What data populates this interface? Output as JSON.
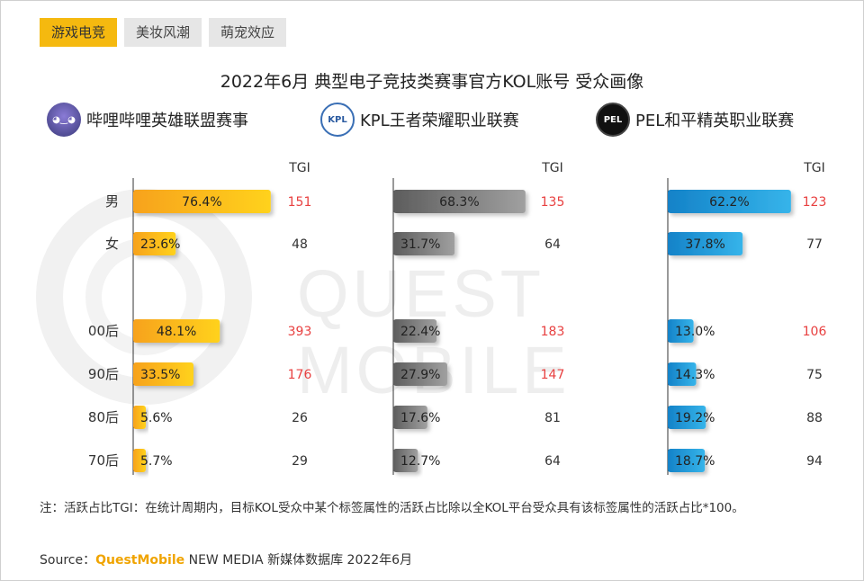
{
  "tabs": [
    {
      "label": "游戏电竞",
      "active": true
    },
    {
      "label": "美妆风潮",
      "active": false
    },
    {
      "label": "萌宠效应",
      "active": false
    }
  ],
  "watermark": "QUEST MOBILE",
  "title": "2022年6月 典型电子竞技类赛事官方KOL账号 受众画像",
  "note": "注：活跃占比TGI：在统计周期内，目标KOL受众中某个标签属性的活跃占比除以全KOL平台受众具有该标签属性的活跃占比*100。",
  "source": {
    "label": "Source：",
    "brand": "QuestMobile",
    "rest": "NEW MEDIA 新媒体数据库 2022年6月"
  },
  "colors": {
    "accent": "#f5b90f",
    "gray": "#7a7a7a",
    "blue": "#1f9ad6",
    "tgi_high": "#e84040",
    "tgi_normal": "#333333"
  },
  "chart_data": [
    {
      "type": "bar",
      "league": "哔哩哔哩英雄联盟赛事",
      "logo_icon": "bilibili-lol-icon",
      "categories": [
        "男",
        "女",
        "00后",
        "90后",
        "80后",
        "70后"
      ],
      "values": [
        76.4,
        23.6,
        48.1,
        33.5,
        5.6,
        5.7
      ],
      "labels": [
        "76.4%",
        "23.6%",
        "48.1%",
        "33.5%",
        "5.6%",
        "5.7%"
      ],
      "tgi_header": "TGI",
      "tgi": [
        151,
        48,
        393,
        176,
        26,
        29
      ],
      "color": "#f5b90f"
    },
    {
      "type": "bar",
      "league": "KPL王者荣耀职业联赛",
      "logo_icon": "kpl-icon",
      "categories": [
        "男",
        "女",
        "00后",
        "90后",
        "80后",
        "70后"
      ],
      "values": [
        68.3,
        31.7,
        22.4,
        27.9,
        17.6,
        12.7
      ],
      "labels": [
        "68.3%",
        "31.7%",
        "22.4%",
        "27.9%",
        "17.6%",
        "12.7%"
      ],
      "tgi_header": "TGI",
      "tgi": [
        135,
        64,
        183,
        147,
        81,
        64
      ],
      "color": "#7a7a7a"
    },
    {
      "type": "bar",
      "league": "PEL和平精英职业联赛",
      "logo_icon": "pel-icon",
      "categories": [
        "男",
        "女",
        "00后",
        "90后",
        "80后",
        "70后"
      ],
      "values": [
        62.2,
        37.8,
        13.0,
        14.3,
        19.2,
        18.7
      ],
      "labels": [
        "62.2%",
        "37.8%",
        "13.0%",
        "14.3%",
        "19.2%",
        "18.7%"
      ],
      "tgi_header": "TGI",
      "tgi": [
        123,
        77,
        106,
        75,
        88,
        94
      ],
      "color": "#1f9ad6"
    }
  ]
}
